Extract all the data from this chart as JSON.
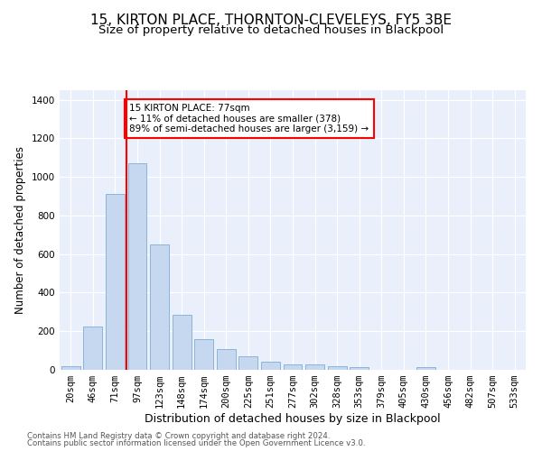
{
  "title": "15, KIRTON PLACE, THORNTON-CLEVELEYS, FY5 3BE",
  "subtitle": "Size of property relative to detached houses in Blackpool",
  "xlabel": "Distribution of detached houses by size in Blackpool",
  "ylabel": "Number of detached properties",
  "categories": [
    "20sqm",
    "46sqm",
    "71sqm",
    "97sqm",
    "123sqm",
    "148sqm",
    "174sqm",
    "200sqm",
    "225sqm",
    "251sqm",
    "277sqm",
    "302sqm",
    "328sqm",
    "353sqm",
    "379sqm",
    "405sqm",
    "430sqm",
    "456sqm",
    "482sqm",
    "507sqm",
    "533sqm"
  ],
  "values": [
    18,
    225,
    910,
    1070,
    650,
    285,
    160,
    108,
    72,
    40,
    28,
    28,
    20,
    15,
    0,
    0,
    12,
    0,
    0,
    0,
    0
  ],
  "bar_color": "#c5d8f0",
  "bar_edgecolor": "#8ab4d8",
  "vline_x_index": 2,
  "vline_color": "red",
  "annotation_text": "15 KIRTON PLACE: 77sqm\n← 11% of detached houses are smaller (378)\n89% of semi-detached houses are larger (3,159) →",
  "annotation_box_color": "white",
  "annotation_box_edgecolor": "red",
  "ylim": [
    0,
    1450
  ],
  "yticks": [
    0,
    200,
    400,
    600,
    800,
    1000,
    1200,
    1400
  ],
  "bg_color": "#eaf0fb",
  "footer1": "Contains HM Land Registry data © Crown copyright and database right 2024.",
  "footer2": "Contains public sector information licensed under the Open Government Licence v3.0.",
  "title_fontsize": 11,
  "subtitle_fontsize": 9.5,
  "xlabel_fontsize": 9,
  "ylabel_fontsize": 8.5,
  "tick_fontsize": 7.5,
  "footer_fontsize": 6.2
}
